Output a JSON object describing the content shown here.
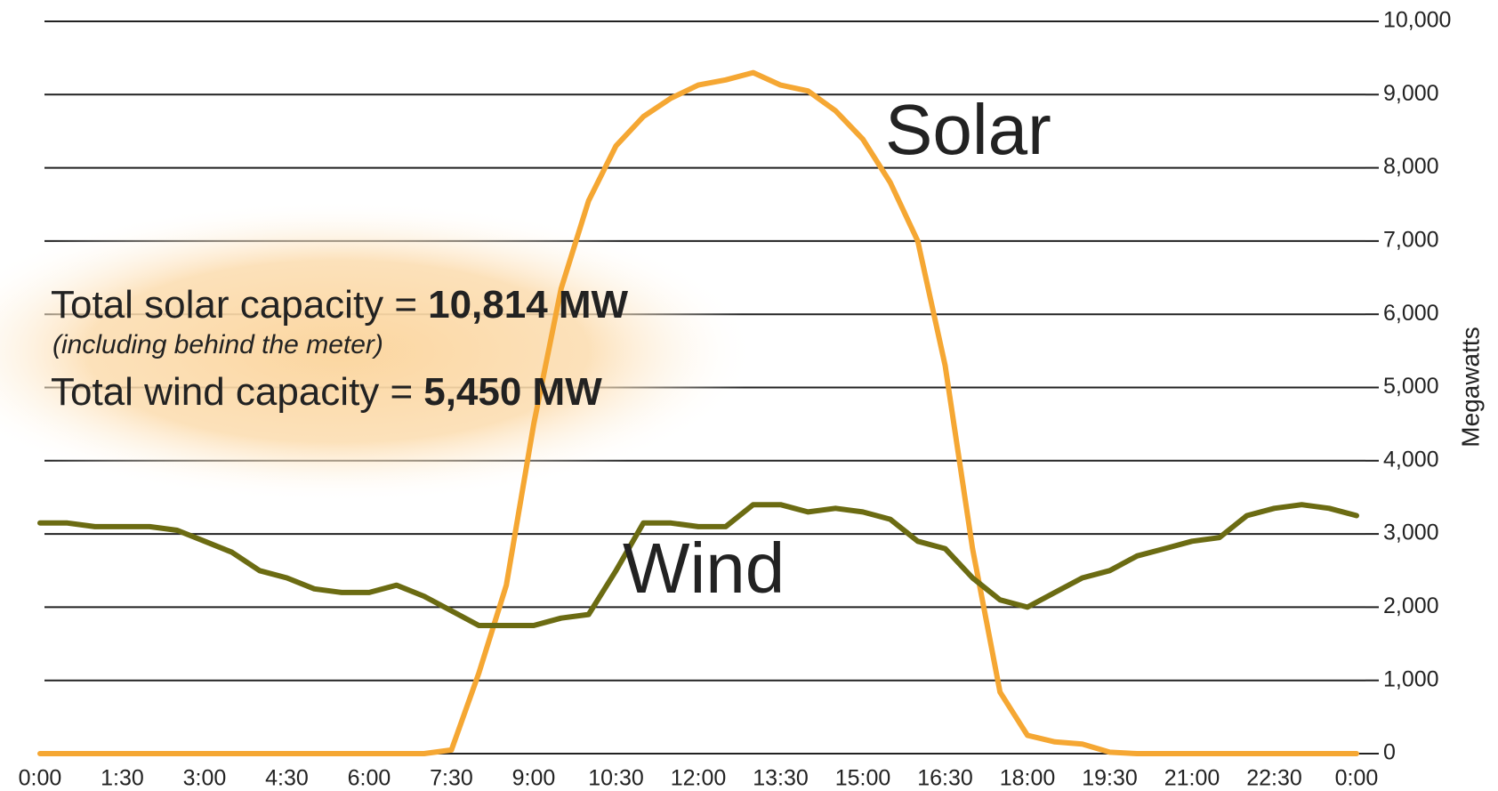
{
  "chart_data": {
    "type": "line",
    "y_label": "Megawatts",
    "annotations": {
      "solar_capacity_text": "Total solar capacity =",
      "solar_capacity_value": "10,814 MW",
      "solar_capacity_note": "(including behind the meter)",
      "wind_capacity_text": "Total wind capacity =",
      "wind_capacity_value": "5,450 MW"
    },
    "x": [
      0,
      0.5,
      1,
      1.5,
      2,
      2.5,
      3,
      3.5,
      4,
      4.5,
      5,
      5.5,
      6,
      6.5,
      7,
      7.5,
      8,
      8.5,
      9,
      9.5,
      10,
      10.5,
      11,
      11.5,
      12,
      12.5,
      13,
      13.5,
      14,
      14.5,
      15,
      15.5,
      16,
      16.5,
      17,
      17.5,
      18,
      18.5,
      19,
      19.5,
      20,
      20.5,
      21,
      21.5,
      22,
      22.5,
      23,
      23.5,
      24
    ],
    "series": [
      {
        "name": "Solar",
        "color": "#f5a733",
        "values": [
          0,
          0,
          0,
          0,
          0,
          0,
          0,
          0,
          0,
          0,
          0,
          0,
          0,
          0,
          0,
          50,
          1100,
          2300,
          4500,
          6350,
          7550,
          8300,
          8700,
          8950,
          9130,
          9200,
          9300,
          9130,
          9050,
          8780,
          8390,
          7800,
          7000,
          5300,
          2800,
          840,
          250,
          160,
          130,
          20,
          0,
          0,
          0,
          0,
          0,
          0,
          0,
          0,
          0
        ]
      },
      {
        "name": "Wind",
        "color": "#6b6b12",
        "values": [
          3150,
          3150,
          3100,
          3100,
          3100,
          3050,
          2900,
          2750,
          2500,
          2400,
          2250,
          2200,
          2200,
          2300,
          2150,
          1950,
          1750,
          1750,
          1750,
          1850,
          1900,
          2500,
          3150,
          3150,
          3100,
          3100,
          3400,
          3400,
          3300,
          3350,
          3300,
          3200,
          2900,
          2800,
          2400,
          2100,
          2000,
          2200,
          2400,
          2500,
          2700,
          2800,
          2900,
          2950,
          3250,
          3350,
          3400,
          3350,
          3250
        ]
      }
    ],
    "xlim": [
      0,
      24
    ],
    "xticks": [
      {
        "value": 0,
        "label": "0:00"
      },
      {
        "value": 1.5,
        "label": "1:30"
      },
      {
        "value": 3,
        "label": "3:00"
      },
      {
        "value": 4.5,
        "label": "4:30"
      },
      {
        "value": 6,
        "label": "6:00"
      },
      {
        "value": 7.5,
        "label": "7:30"
      },
      {
        "value": 9,
        "label": "9:00"
      },
      {
        "value": 10.5,
        "label": "10:30"
      },
      {
        "value": 12,
        "label": "12:00"
      },
      {
        "value": 13.5,
        "label": "13:30"
      },
      {
        "value": 15,
        "label": "15:00"
      },
      {
        "value": 16.5,
        "label": "16:30"
      },
      {
        "value": 18,
        "label": "18:00"
      },
      {
        "value": 19.5,
        "label": "19:30"
      },
      {
        "value": 21,
        "label": "21:00"
      },
      {
        "value": 22.5,
        "label": "22:30"
      },
      {
        "value": 24,
        "label": "0:00"
      }
    ],
    "ylim": [
      0,
      10000
    ],
    "yticks": [
      0,
      {
        "value": 1000,
        "label": "1,000"
      },
      {
        "value": 2000,
        "label": "2,000"
      },
      {
        "value": 3000,
        "label": "3,000"
      },
      {
        "value": 4000,
        "label": "4,000"
      },
      {
        "value": 5000,
        "label": "5,000"
      },
      {
        "value": 6000,
        "label": "6,000"
      },
      {
        "value": 7000,
        "label": "7,000"
      },
      {
        "value": 8000,
        "label": "8,000"
      },
      {
        "value": 9000,
        "label": "9,000"
      },
      {
        "value": 10000,
        "label": "10,000"
      }
    ],
    "grid": true
  }
}
